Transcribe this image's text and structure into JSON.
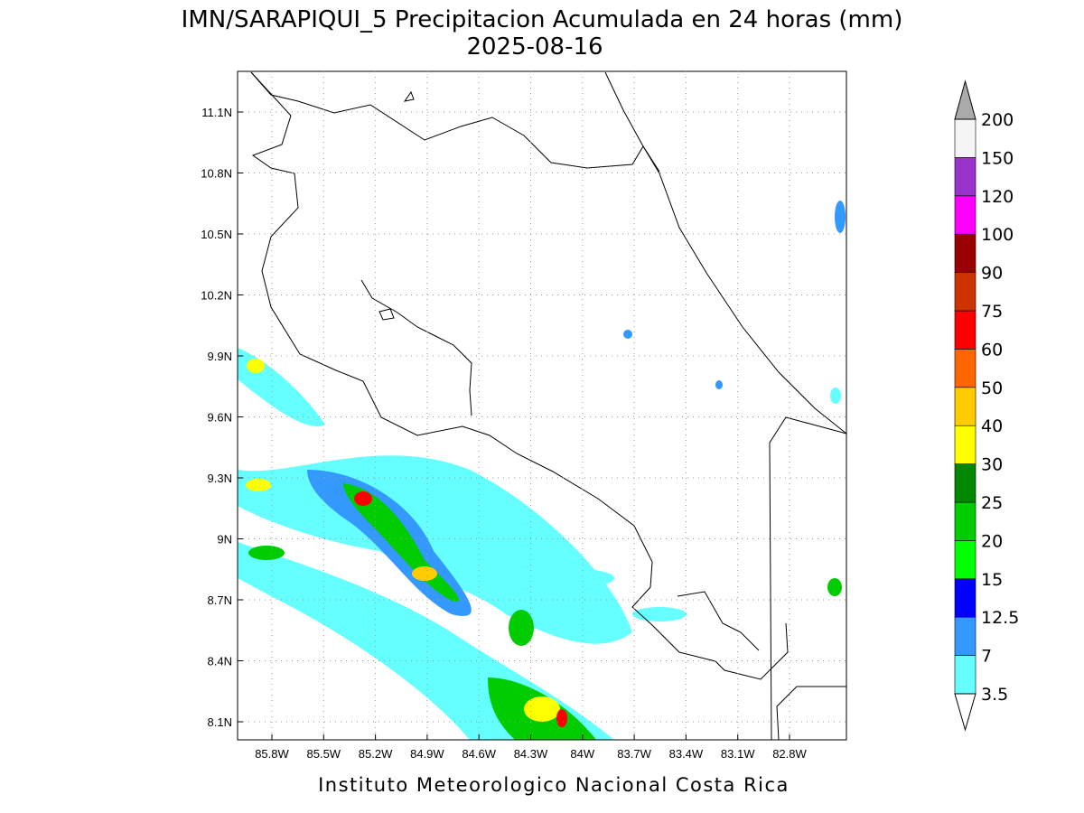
{
  "header": {
    "title": "IMN/SARAPIQUI_5 Precipitacion Acumulada en 24 horas (mm)",
    "subtitle": "2025-08-16"
  },
  "map": {
    "x_labels": [
      "85.8W",
      "85.5W",
      "85.2W",
      "84.9W",
      "84.6W",
      "84.3W",
      "84W",
      "83.7W",
      "83.4W",
      "83.1W",
      "82.8W"
    ],
    "y_labels": [
      "11.1N",
      "10.8N",
      "10.5N",
      "10.2N",
      "9.9N",
      "9.6N",
      "9.3N",
      "9N",
      "8.7N",
      "8.4N",
      "8.1N"
    ]
  },
  "colorbar": {
    "levels": [
      3.5,
      7,
      12.5,
      15,
      20,
      25,
      30,
      40,
      50,
      60,
      75,
      90,
      100,
      120,
      150,
      200
    ],
    "colors": [
      "#66ffff",
      "#3399ff",
      "#0000ff",
      "#00ff00",
      "#00cc00",
      "#008800",
      "#ffff00",
      "#ffcc00",
      "#ff6600",
      "#ff0000",
      "#cc3300",
      "#990000",
      "#ff00ff",
      "#9933cc",
      "#f5f5f5"
    ],
    "over_color": "#aaaaaa",
    "under_color": "#ffffff"
  },
  "footer": {
    "text": "Instituto Meteorologico Nacional Costa Rica"
  }
}
